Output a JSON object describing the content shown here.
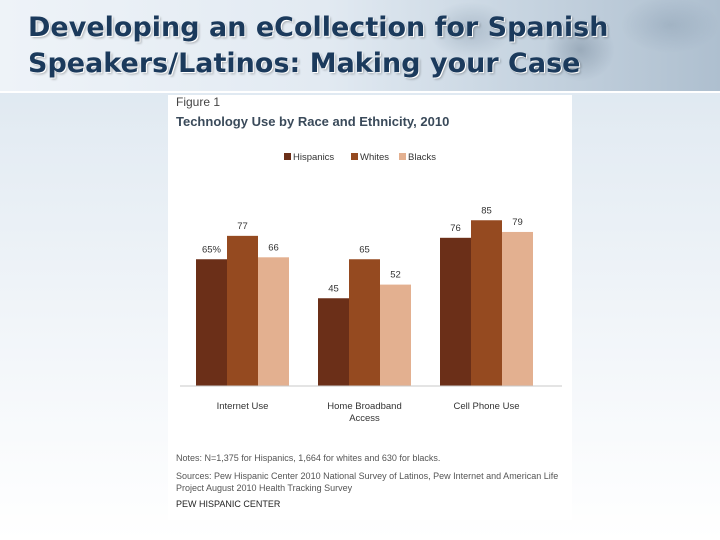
{
  "slide": {
    "title": "Developing an eCollection for Spanish Speakers/Latinos: Making your Case"
  },
  "figure": {
    "label": "Figure 1",
    "notes": "Notes: N=1,375 for Hispanics, 1,664 for whites and 630 for blacks.",
    "sources": "Sources: Pew Hispanic Center 2010 National Survey of Latinos, Pew Internet and American Life Project August 2010 Health Tracking Survey",
    "credit": "PEW HISPANIC CENTER"
  },
  "chart_data": {
    "type": "bar",
    "title": "Technology Use by Race and Ethnicity, 2010",
    "categories": [
      "Internet Use",
      "Home Broadband Access",
      "Cell Phone Use"
    ],
    "category_lines": [
      [
        "Internet Use"
      ],
      [
        "Home Broadband",
        "Access"
      ],
      [
        "Cell Phone Use"
      ]
    ],
    "series": [
      {
        "name": "Hispanics",
        "values": [
          65,
          45,
          76
        ],
        "labels": [
          "65%",
          "45",
          "76"
        ],
        "color": "#6b2f18"
      },
      {
        "name": "Whites",
        "values": [
          77,
          65,
          85
        ],
        "labels": [
          "77",
          "65",
          "85"
        ],
        "color": "#954a20"
      },
      {
        "name": "Blacks",
        "values": [
          66,
          52,
          79
        ],
        "labels": [
          "66",
          "52",
          "79"
        ],
        "color": "#e3b090"
      }
    ],
    "ylim": [
      0,
      100
    ],
    "grid": false,
    "legend": "top-center"
  }
}
